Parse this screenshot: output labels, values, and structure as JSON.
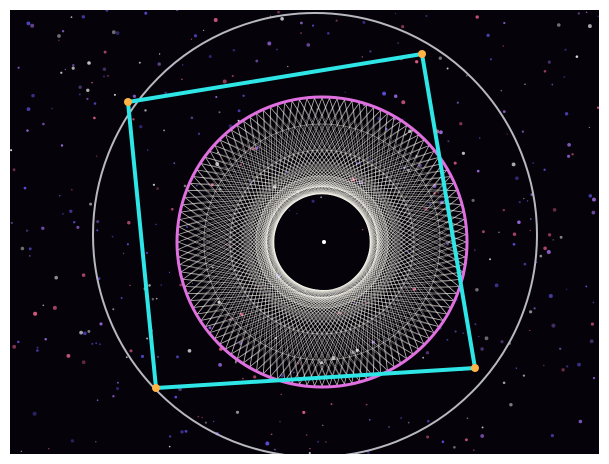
{
  "image": {
    "alt_description_hidden": "",
    "background_color": "#05020a",
    "frame_color": "#ffffff",
    "colors": {
      "outer_circle": "#b8b8c0",
      "square": "#2fe6e6",
      "square_vertices": "#ffb347",
      "pink_ring": "#e070e0",
      "string_art": "#f4f2e8",
      "inner_hole": "#05020a",
      "stars": [
        "#6a5cff",
        "#ff6a9a",
        "#b07aff",
        "#ffffff"
      ]
    },
    "string_art": {
      "symmetry": 8,
      "num_points": 120,
      "step": 47
    },
    "square_rotation_deg": -8
  }
}
